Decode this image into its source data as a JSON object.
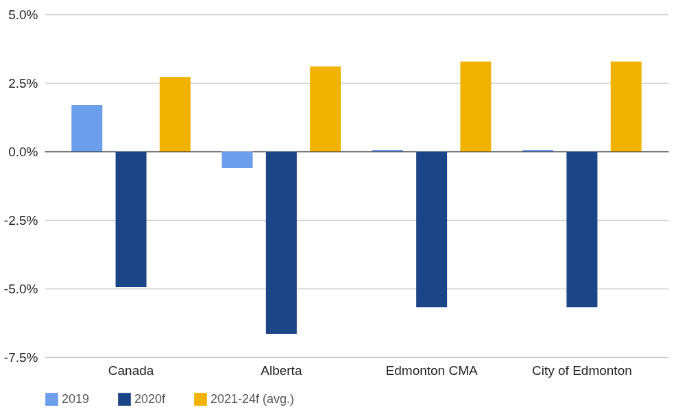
{
  "chart_data": {
    "type": "bar",
    "categories": [
      "Canada",
      "Alberta",
      "Edmonton CMA",
      "City of Edmonton"
    ],
    "series": [
      {
        "name": "2019",
        "color": "#6d9eeb",
        "values": [
          1.7,
          -0.6,
          0.05,
          0.05
        ]
      },
      {
        "name": "2020f",
        "color": "#1c4587",
        "values": [
          -4.95,
          -6.65,
          -5.68,
          -5.68
        ]
      },
      {
        "name": "2021-24f (avg.)",
        "color": "#f1b300",
        "values": [
          2.72,
          3.1,
          3.28,
          3.28
        ]
      }
    ],
    "ylim": [
      -7.5,
      5
    ],
    "yticks": [
      {
        "value": -7.5,
        "label": "-7.5%"
      },
      {
        "value": -5,
        "label": "-5.0%"
      },
      {
        "value": -2.5,
        "label": "-2.5%"
      },
      {
        "value": 0,
        "label": "0.0%"
      },
      {
        "value": 2.5,
        "label": "2.5%"
      },
      {
        "value": 5,
        "label": "5.0%"
      }
    ],
    "grid": "y",
    "legend": "bottom"
  }
}
